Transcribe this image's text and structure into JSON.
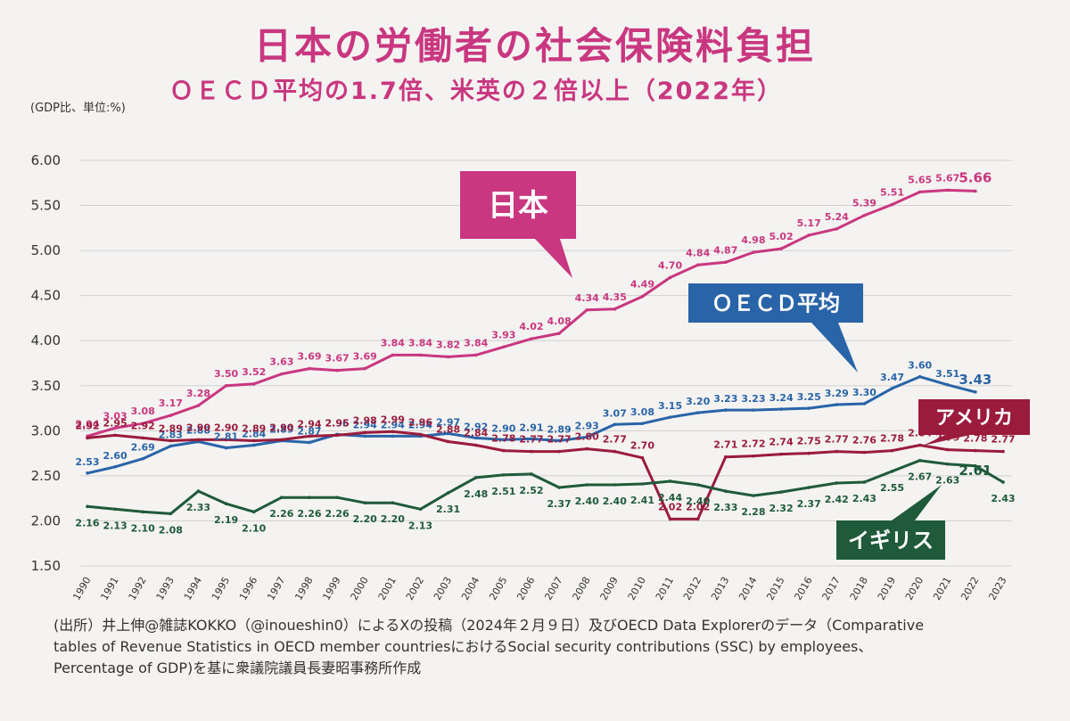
{
  "chart_data": {
    "type": "line",
    "title": "日本の労働者の社会保険料負担",
    "subtitle": "ＯＥＣＤ平均の1.7倍、米英の２倍以上（2022年）",
    "ylabel": "(GDP比、単位:%)",
    "ylim": [
      1.5,
      6.0
    ],
    "yticks": [
      "6.00",
      "5.50",
      "5.00",
      "4.50",
      "4.00",
      "3.50",
      "3.00",
      "2.50",
      "2.00",
      "1.50"
    ],
    "categories": [
      "1990",
      "1991",
      "1992",
      "1993",
      "1994",
      "1995",
      "1996",
      "1997",
      "1998",
      "1999",
      "2000",
      "2001",
      "2002",
      "2003",
      "2004",
      "2005",
      "2006",
      "2007",
      "2008",
      "2009",
      "2010",
      "2011",
      "2012",
      "2013",
      "2014",
      "2015",
      "2016",
      "2017",
      "2018",
      "2019",
      "2020",
      "2021",
      "2022",
      "2023"
    ],
    "grid": true,
    "series": [
      {
        "name": "日本",
        "color": "#c8377f",
        "values": [
          2.94,
          3.03,
          3.08,
          3.17,
          3.28,
          3.5,
          3.52,
          3.63,
          3.69,
          3.67,
          3.69,
          3.84,
          3.84,
          3.82,
          3.84,
          3.93,
          4.02,
          4.08,
          4.34,
          4.35,
          4.49,
          4.7,
          4.84,
          4.87,
          4.98,
          5.02,
          5.17,
          5.24,
          5.39,
          5.51,
          5.65,
          5.67,
          5.66,
          null
        ]
      },
      {
        "name": "ＯＥＣＤ平均",
        "color": "#2a64a8",
        "values": [
          2.53,
          2.6,
          2.69,
          2.83,
          2.88,
          2.81,
          2.84,
          2.89,
          2.87,
          2.96,
          2.94,
          2.94,
          2.94,
          2.97,
          2.92,
          2.9,
          2.91,
          2.89,
          2.93,
          3.07,
          3.08,
          3.15,
          3.2,
          3.23,
          3.23,
          3.24,
          3.25,
          3.29,
          3.3,
          3.47,
          3.6,
          3.51,
          3.43,
          null
        ]
      },
      {
        "name": "アメリカ",
        "color": "#9a1b3c",
        "values": [
          2.92,
          2.95,
          2.92,
          2.89,
          2.9,
          2.9,
          2.89,
          2.9,
          2.94,
          2.95,
          2.98,
          2.99,
          2.96,
          2.88,
          2.84,
          2.78,
          2.77,
          2.77,
          2.8,
          2.77,
          2.7,
          2.02,
          2.02,
          2.71,
          2.72,
          2.74,
          2.75,
          2.77,
          2.76,
          2.78,
          2.84,
          2.79,
          2.78,
          2.77
        ]
      },
      {
        "name": "イギリス",
        "color": "#1f5a3a",
        "values": [
          2.16,
          2.13,
          2.1,
          2.08,
          2.33,
          2.19,
          2.1,
          2.26,
          2.26,
          2.26,
          2.2,
          2.2,
          2.13,
          2.31,
          2.48,
          2.51,
          2.52,
          2.37,
          2.4,
          2.4,
          2.41,
          2.44,
          2.4,
          2.33,
          2.28,
          2.32,
          2.37,
          2.42,
          2.43,
          2.55,
          2.67,
          2.63,
          2.61,
          2.43
        ]
      }
    ],
    "value_labels": {
      "日本": [
        "2.94",
        "3.03",
        "3.08",
        "3.17",
        "3.28",
        "3.50",
        "3.52",
        "3.63",
        "3.69",
        "3.67",
        "3.69",
        "3.84",
        "3.84",
        "3.82",
        "3.84",
        "3.93",
        "4.02",
        "4.08",
        "4.34",
        "4.35",
        "4.49",
        "4.70",
        "4.84",
        "4.87",
        "4.98",
        "5.02",
        "5.17",
        "5.24",
        "5.39",
        "5.51",
        "5.65",
        "5.67",
        "5.66",
        ""
      ],
      "ＯＥＣＤ平均": [
        "2.53",
        "2.60",
        "2.69",
        "2.83",
        "2.88",
        "2.81",
        "2.84",
        "2.89",
        "2.87",
        "2.96",
        "2.94",
        "2.94",
        "2.94",
        "2.97",
        "2.92",
        "2.90",
        "2.91",
        "2.89",
        "2.93",
        "3.07",
        "3.08",
        "3.15",
        "3.20",
        "3.23",
        "3.23",
        "3.24",
        "3.25",
        "3.29",
        "3.30",
        "3.47",
        "3.60",
        "3.51",
        "3.43",
        ""
      ],
      "アメリカ": [
        "2.92",
        "2.95",
        "2.92",
        "2.89",
        "2.90",
        "2.90",
        "2.89",
        "2.90",
        "2.94",
        "2.95",
        "2.98",
        "2.99",
        "2.96",
        "2.88",
        "2.84",
        "2.78",
        "2.77",
        "2.77",
        "2.80",
        "2.77",
        "2.70",
        "2.02",
        "2.02",
        "2.71",
        "2.72",
        "2.74",
        "2.75",
        "2.77",
        "2.76",
        "2.78",
        "2.84",
        "2.79",
        "2.78",
        "2.77"
      ],
      "イギリス": [
        "2.16",
        "2.13",
        "2.10",
        "2.08",
        "2.33",
        "2.19",
        "2.10",
        "2.26",
        "2.26",
        "2.26",
        "2.20",
        "2.20",
        "2.13",
        "2.31",
        "2.48",
        "2.51",
        "2.52",
        "2.37",
        "2.40",
        "2.40",
        "2.41",
        "2.44",
        "2.40",
        "2.33",
        "2.28",
        "2.32",
        "2.37",
        "2.42",
        "2.43",
        "2.55",
        "2.67",
        "2.63",
        "2.61",
        "2.43"
      ]
    },
    "callouts": [
      {
        "text": "日本",
        "series": "日本",
        "color": "#c8377f"
      },
      {
        "text": "ＯＥＣＤ平均",
        "series": "ＯＥＣＤ平均",
        "color": "#2a64a8"
      },
      {
        "text": "アメリカ",
        "series": "アメリカ",
        "color": "#9a1b3c"
      },
      {
        "text": "イギリス",
        "series": "イギリス",
        "color": "#1f5a3a"
      }
    ]
  },
  "source_note": "(出所）井上伸@雑誌KOKKO（@inoueshin0）によるXの投稿（2024年２月９日）及びOECD Data Explorerのデータ（Comparative tables of Revenue Statistics in OECD member countriesにおけるSocial security contributions (SSC) by employees、Percentage of GDP)を基に衆議院議員長妻昭事務所作成"
}
